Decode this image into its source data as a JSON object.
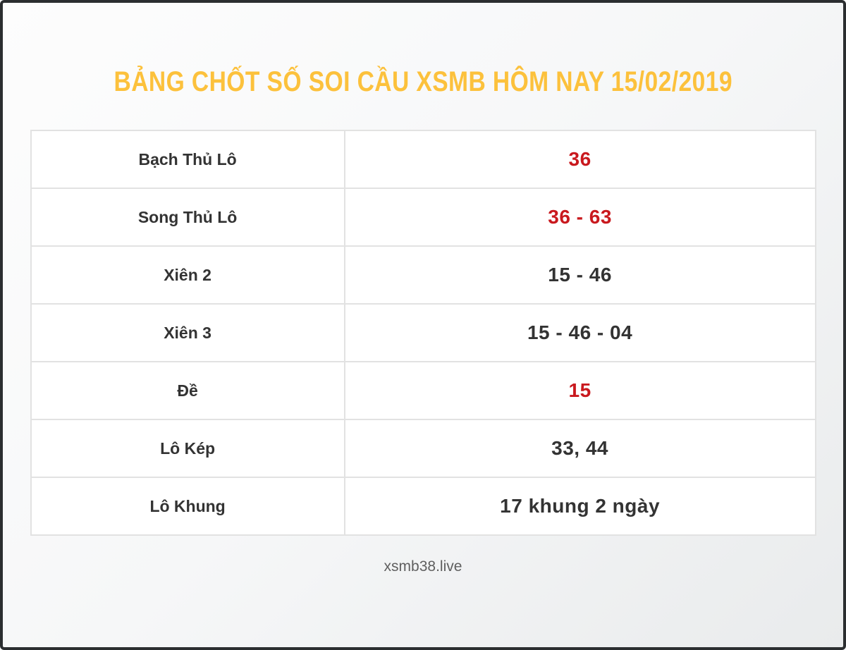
{
  "page": {
    "title": "BẢNG CHỐT SỐ SOI CẦU XSMB HÔM NAY 15/02/2019",
    "footer": "xsmb38.live"
  },
  "colors": {
    "title": "#fcc13c",
    "highlight": "#c9191e",
    "text_dark": "#333333",
    "footer_text": "#5f5f5f",
    "table_border": "#e2e2e2",
    "frame_border": "#2b2e30"
  },
  "chart_data": {
    "type": "table",
    "title": "BẢNG CHỐT SỐ SOI CẦU XSMB HÔM NAY 15/02/2019",
    "columns": [
      "label",
      "value"
    ],
    "rows": [
      {
        "label": "Bạch Thủ Lô",
        "value": "36",
        "highlight": true
      },
      {
        "label": "Song Thủ Lô",
        "value": "36 - 63",
        "highlight": true
      },
      {
        "label": "Xiên 2",
        "value": "15 - 46",
        "highlight": false
      },
      {
        "label": "Xiên 3",
        "value": "15 - 46 - 04",
        "highlight": false
      },
      {
        "label": "Đề",
        "value": "15",
        "highlight": true
      },
      {
        "label": "Lô Kép",
        "value": "33, 44",
        "highlight": false
      },
      {
        "label": "Lô Khung",
        "value": "17 khung 2 ngày",
        "highlight": false
      }
    ],
    "layout": {
      "grid": true,
      "value_highlight_color": "#c9191e"
    }
  }
}
